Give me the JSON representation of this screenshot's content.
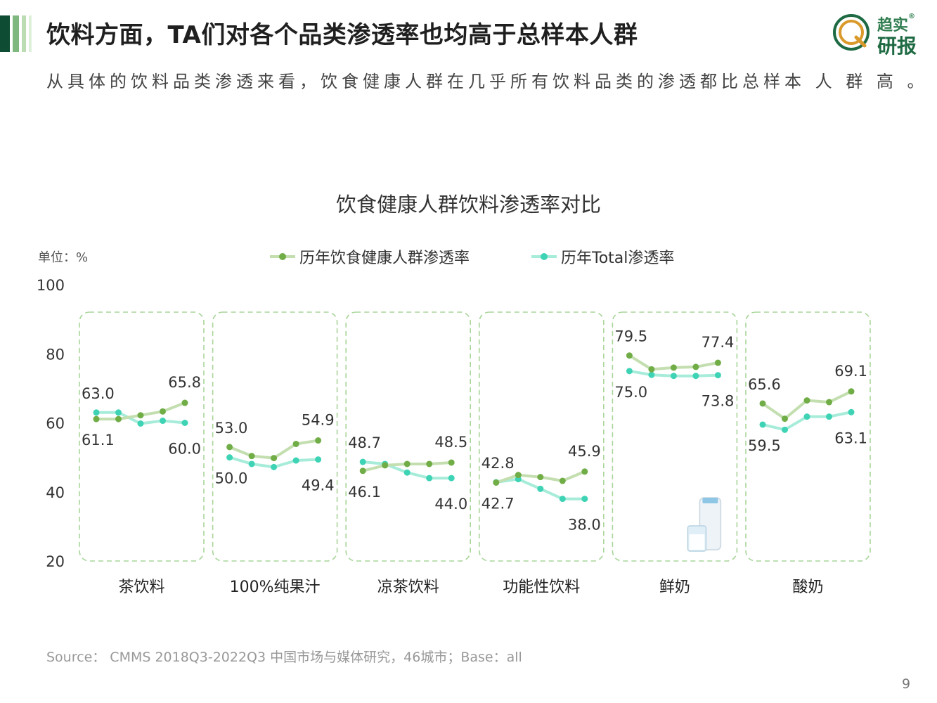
{
  "header": {
    "title": "饮料方面，TA们对各个品类渗透率也均高于总样本人群",
    "subtitle": "从具体的饮料品类渗透来看，饮食健康人群在几乎所有饮料品类的渗透都比总样本 人 群 高 。"
  },
  "logo": {
    "line1": "趋实",
    "line2": "研报",
    "reg": "®",
    "icon": "magnifier-q-logo-icon"
  },
  "chart_data": {
    "type": "line",
    "title": "饮食健康人群饮料渗透率对比",
    "unit_label": "单位：%",
    "ylim": [
      20,
      100
    ],
    "yticks": [
      "100",
      "80",
      "60",
      "40",
      "20"
    ],
    "ytick_values": [
      100,
      80,
      60,
      40,
      20
    ],
    "grid": false,
    "legend_position": "top",
    "colors": {
      "health": "#c3deaf",
      "health_marker": "#71ad47",
      "total": "#a6ecd9",
      "total_marker": "#3fd3b5",
      "panel_border": "#a9d59a"
    },
    "series": [
      {
        "name": "历年饮食健康人群渗透率",
        "key": "health"
      },
      {
        "name": "历年Total渗透率",
        "key": "total"
      }
    ],
    "categories": [
      {
        "name": "茶饮料",
        "health": [
          61.1,
          61.1,
          62.2,
          63.3,
          65.8
        ],
        "total": [
          63.0,
          63.0,
          59.8,
          60.6,
          60.0
        ],
        "labels": {
          "total_first": "63.0",
          "health_first": "61.1",
          "health_last": "65.8",
          "total_last": "60.0"
        }
      },
      {
        "name": "100%纯果汁",
        "health": [
          53.0,
          50.4,
          49.8,
          53.9,
          54.9
        ],
        "total": [
          50.0,
          48.1,
          47.2,
          49.1,
          49.4
        ],
        "labels": {
          "health_first": "53.0",
          "total_first": "50.0",
          "health_last": "54.9",
          "total_last": "49.4"
        }
      },
      {
        "name": "凉茶饮料",
        "health": [
          46.1,
          47.7,
          48.1,
          48.1,
          48.5
        ],
        "total": [
          48.7,
          48.1,
          45.6,
          44.0,
          44.0
        ],
        "labels": {
          "total_first": "48.7",
          "health_first": "46.1",
          "health_last": "48.5",
          "total_last": "44.0"
        }
      },
      {
        "name": "功能性饮料",
        "health": [
          42.7,
          44.9,
          44.3,
          43.2,
          45.9
        ],
        "total": [
          42.8,
          43.7,
          40.9,
          38.0,
          38.0
        ],
        "labels": {
          "total_first": "42.8",
          "health_first": "42.7",
          "health_last": "45.9",
          "total_last": "38.0"
        }
      },
      {
        "name": "鲜奶",
        "health": [
          79.5,
          75.5,
          76.0,
          76.2,
          77.4
        ],
        "total": [
          75.0,
          73.9,
          73.6,
          73.6,
          73.8
        ],
        "labels": {
          "health_first": "79.5",
          "total_first": "75.0",
          "health_last": "77.4",
          "total_last": "73.8"
        }
      },
      {
        "name": "酸奶",
        "health": [
          65.6,
          61.2,
          66.5,
          66.0,
          69.1
        ],
        "total": [
          59.5,
          58.0,
          61.8,
          61.8,
          63.1
        ],
        "labels": {
          "health_first": "65.6",
          "total_first": "59.5",
          "health_last": "69.1",
          "total_last": "63.1"
        }
      }
    ]
  },
  "footer": {
    "source": "Source： CMMS 2018Q3-2022Q3 中国市场与媒体研究，46城市；Base：all",
    "page_number": "9"
  }
}
